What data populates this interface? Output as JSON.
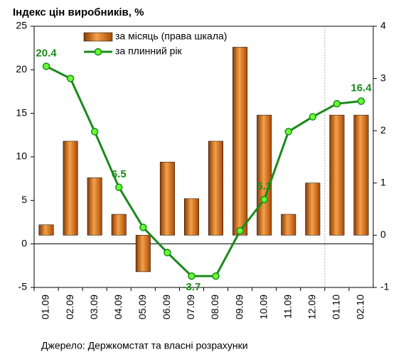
{
  "chart_data": {
    "type": "bar_line",
    "title": "Індекс цін виробників, %",
    "source": "Джерело: Держкомстат та власні розрахунки",
    "categories": [
      "01.09",
      "02.09",
      "03.09",
      "04.09",
      "05.09",
      "06.09",
      "07.09",
      "08.09",
      "09.09",
      "10.09",
      "11.09",
      "12.09",
      "01.10",
      "02.10"
    ],
    "series": [
      {
        "name": "за місяць (права шкала)",
        "type": "bar",
        "axis": "y2",
        "color": "#e07b1a",
        "values": [
          0.2,
          1.8,
          1.1,
          0.4,
          -0.7,
          1.4,
          0.7,
          1.8,
          3.6,
          2.3,
          0.4,
          1.0,
          2.3,
          2.3
        ]
      },
      {
        "name": "за плинний рік",
        "type": "line",
        "color": "#1a8a1a",
        "marker_color": "#66ff33",
        "values": [
          20.4,
          19.0,
          12.9,
          6.5,
          1.9,
          -1.0,
          -3.7,
          -3.7,
          1.5,
          5.1,
          12.9,
          14.6,
          16.1,
          16.4
        ],
        "value_labels": [
          "20.4",
          null,
          null,
          "6.5",
          null,
          null,
          "-3.7",
          null,
          null,
          "5.1",
          null,
          null,
          null,
          "16.4"
        ]
      }
    ],
    "ylim": [
      -5,
      25
    ],
    "yticks": [
      -5,
      0,
      5,
      10,
      15,
      20,
      25
    ],
    "y2lim": [
      -1,
      4
    ],
    "y2ticks": [
      -1,
      0,
      1,
      2,
      3,
      4
    ]
  }
}
